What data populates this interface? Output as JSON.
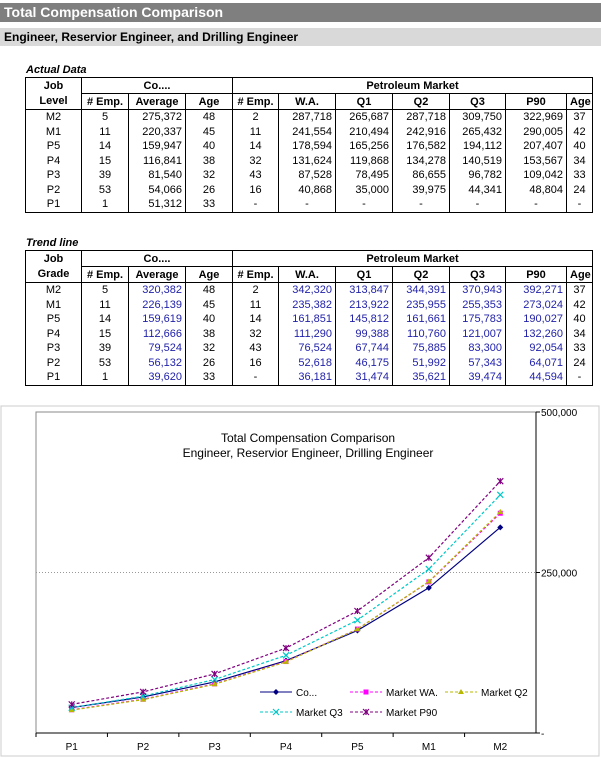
{
  "header": {
    "title": "Total Compensation Comparison",
    "subtitle": "Engineer, Reservior Engineer, and Drilling Engineer"
  },
  "actual": {
    "caption": "Actual Data",
    "h1": [
      "Job",
      "Co....",
      "Petroleum Market"
    ],
    "h2": [
      "Level",
      "# Emp.",
      "Average",
      "Age",
      "# Emp.",
      "W.A.",
      "Q1",
      "Q2",
      "Q3",
      "P90",
      "Age"
    ],
    "rows": [
      [
        "M2",
        "5",
        "275,372",
        "48",
        "2",
        "287,718",
        "265,687",
        "287,718",
        "309,750",
        "322,969",
        "37"
      ],
      [
        "M1",
        "11",
        "220,337",
        "45",
        "11",
        "241,554",
        "210,494",
        "242,916",
        "265,432",
        "290,005",
        "42"
      ],
      [
        "P5",
        "14",
        "159,947",
        "40",
        "14",
        "178,594",
        "165,256",
        "176,582",
        "194,112",
        "207,407",
        "40"
      ],
      [
        "P4",
        "15",
        "116,841",
        "38",
        "32",
        "131,624",
        "119,868",
        "134,278",
        "140,519",
        "153,567",
        "34"
      ],
      [
        "P3",
        "39",
        "81,540",
        "32",
        "43",
        "87,528",
        "78,495",
        "86,655",
        "96,782",
        "109,042",
        "33"
      ],
      [
        "P2",
        "53",
        "54,066",
        "26",
        "16",
        "40,868",
        "35,000",
        "39,975",
        "44,341",
        "48,804",
        "24"
      ],
      [
        "P1",
        "1",
        "51,312",
        "33",
        "-",
        "-",
        "-",
        "-",
        "-",
        "-",
        "-"
      ]
    ]
  },
  "trend": {
    "caption": "Trend line",
    "h1": [
      "Job",
      "Co....",
      "Petroleum Market"
    ],
    "h2": [
      "Grade",
      "# Emp.",
      "Average",
      "Age",
      "# Emp.",
      "W.A.",
      "Q1",
      "Q2",
      "Q3",
      "P90",
      "Age"
    ],
    "rows": [
      [
        "M2",
        "5",
        "320,382",
        "48",
        "2",
        "342,320",
        "313,847",
        "344,391",
        "370,943",
        "392,271",
        "37"
      ],
      [
        "M1",
        "11",
        "226,139",
        "45",
        "11",
        "235,382",
        "213,922",
        "235,955",
        "255,353",
        "273,024",
        "42"
      ],
      [
        "P5",
        "14",
        "159,619",
        "40",
        "14",
        "161,851",
        "145,812",
        "161,661",
        "175,783",
        "190,027",
        "40"
      ],
      [
        "P4",
        "15",
        "112,666",
        "38",
        "32",
        "111,290",
        "99,388",
        "110,760",
        "121,007",
        "132,260",
        "34"
      ],
      [
        "P3",
        "39",
        "79,524",
        "32",
        "43",
        "76,524",
        "67,744",
        "75,885",
        "83,300",
        "92,054",
        "33"
      ],
      [
        "P2",
        "53",
        "56,132",
        "26",
        "16",
        "52,618",
        "46,175",
        "51,992",
        "57,343",
        "64,071",
        "24"
      ],
      [
        "P1",
        "1",
        "39,620",
        "33",
        "-",
        "36,181",
        "31,474",
        "35,621",
        "39,474",
        "44,594",
        "-"
      ]
    ]
  },
  "chart_data": {
    "type": "line",
    "title": "Total Compensation Comparison",
    "subtitle": "Engineer, Reservior Engineer, Drilling Engineer",
    "categories": [
      "P1",
      "P2",
      "P3",
      "P4",
      "P5",
      "M1",
      "M2"
    ],
    "ylim": [
      0,
      500000
    ],
    "yticks": [
      0,
      250000,
      500000
    ],
    "ytick_labels": [
      "-",
      "250,000",
      "500,000"
    ],
    "y_axis_side": "right",
    "grid": "horizontal",
    "legend": "bottom-right",
    "series": [
      {
        "name": "Co...",
        "color": "#000080",
        "dash": false,
        "marker": "diamond",
        "values": [
          39620,
          56132,
          79524,
          112666,
          159619,
          226139,
          320382
        ]
      },
      {
        "name": "Market WA.",
        "color": "#ff00ff",
        "dash": true,
        "marker": "square",
        "values": [
          36181,
          52618,
          76524,
          111290,
          161851,
          235382,
          342320
        ]
      },
      {
        "name": "Market Q2",
        "color": "#b8b800",
        "dash": true,
        "marker": "triangle",
        "values": [
          35621,
          51992,
          75885,
          110760,
          161661,
          235955,
          344391
        ]
      },
      {
        "name": "Market Q3",
        "color": "#00c8c8",
        "dash": true,
        "marker": "x",
        "values": [
          39474,
          57343,
          83300,
          121007,
          175783,
          255353,
          370943
        ]
      },
      {
        "name": "Market P90",
        "color": "#800080",
        "dash": true,
        "marker": "star",
        "values": [
          44594,
          64071,
          92054,
          132260,
          190027,
          273024,
          392271
        ]
      }
    ]
  }
}
